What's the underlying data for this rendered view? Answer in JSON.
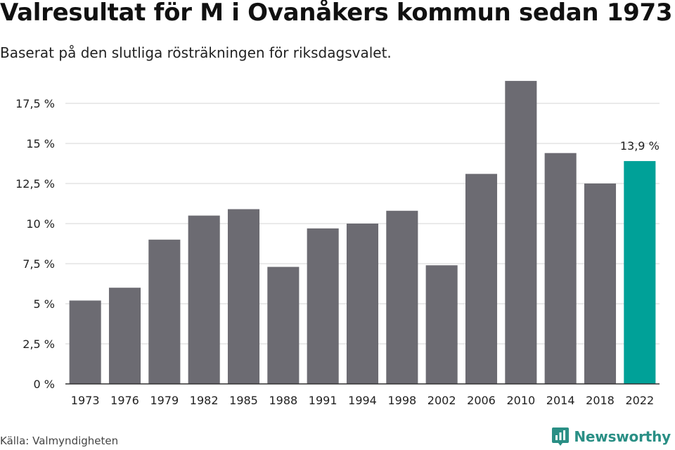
{
  "chart_data": {
    "type": "bar",
    "title": "Valresultat för M i Ovanåkers kommun sedan 1973",
    "subtitle": "Baserat på den slutliga rösträkningen för riksdagsvalet.",
    "categories": [
      "1973",
      "1976",
      "1979",
      "1982",
      "1985",
      "1988",
      "1991",
      "1994",
      "1998",
      "2002",
      "2006",
      "2010",
      "2014",
      "2018",
      "2022"
    ],
    "values": [
      5.2,
      6.0,
      9.0,
      10.5,
      10.9,
      7.3,
      9.7,
      10.0,
      10.8,
      7.4,
      13.1,
      18.9,
      14.4,
      12.5,
      13.9
    ],
    "ylim": [
      0,
      20
    ],
    "yticks": [
      0,
      2.5,
      5,
      7.5,
      10,
      12.5,
      15,
      17.5
    ],
    "ytick_labels": [
      "0 %",
      "2,5 %",
      "5 %",
      "7,5 %",
      "10 %",
      "12,5 %",
      "15 %",
      "17,5 %"
    ],
    "grid": true,
    "legend": "none",
    "colors": {
      "default": "#6c6b72",
      "highlight": "#00a198",
      "grid": "#dddddd",
      "axis": "#333333"
    },
    "highlight_index": 14,
    "annotation": {
      "text": "13,9 %",
      "index": 14
    }
  },
  "footer": {
    "source": "Källa: Valmyndigheten",
    "brand": "Newsworthy",
    "brand_icon": "bar-chart-badge-icon"
  }
}
